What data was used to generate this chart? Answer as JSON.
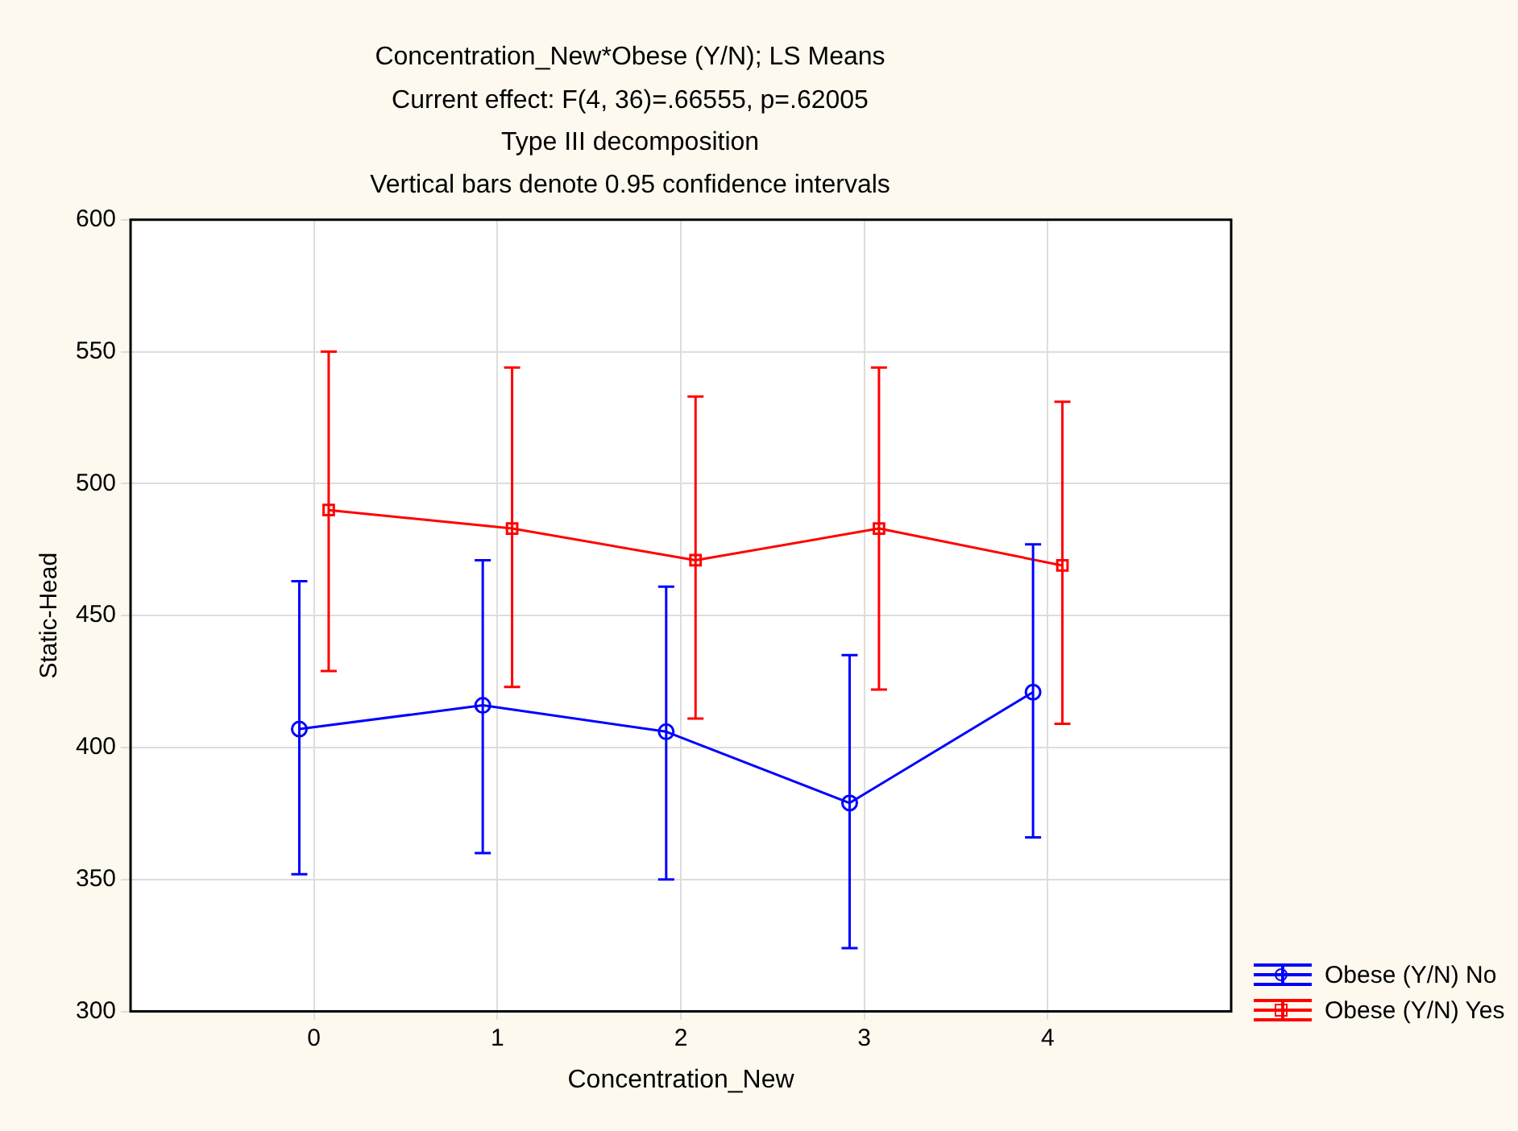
{
  "chart_data": {
    "type": "line",
    "title": "Concentration_New*Obese (Y/N); LS Means",
    "subtitle": "Current effect: F(4, 36)=.66555, p=.62005",
    "annotations": [
      "Type III decomposition",
      "Vertical bars denote 0.95 confidence intervals"
    ],
    "xlabel": "Concentration_New",
    "ylabel": "Static-Head",
    "xlim": [
      -1,
      5
    ],
    "xticks": [
      0,
      1,
      2,
      3,
      4
    ],
    "ylim": [
      300,
      600
    ],
    "yticks": [
      300,
      350,
      400,
      450,
      500,
      550,
      600
    ],
    "grid": true,
    "legend": "bottom right",
    "line_style": "solid",
    "series": [
      {
        "name": "Obese (Y/N) No",
        "color": "#0000ff",
        "marker": "circle",
        "x": [
          -0.08,
          0.92,
          1.92,
          2.92,
          3.92
        ],
        "values": [
          407,
          416,
          406,
          379,
          421
        ],
        "errors": [
          [
            352,
            463
          ],
          [
            360,
            471
          ],
          [
            350,
            461
          ],
          [
            324,
            435
          ],
          [
            366,
            477
          ]
        ]
      },
      {
        "name": "Obese (Y/N) Yes",
        "color": "#ff0000",
        "marker": "square",
        "x": [
          0.08,
          1.08,
          2.08,
          3.08,
          4.08
        ],
        "values": [
          490,
          483,
          471,
          483,
          469
        ],
        "errors": [
          [
            429,
            550
          ],
          [
            423,
            544
          ],
          [
            411,
            533
          ],
          [
            422,
            544
          ],
          [
            409,
            531
          ]
        ]
      }
    ]
  }
}
